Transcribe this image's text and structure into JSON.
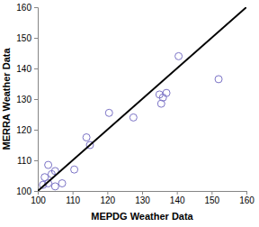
{
  "chart_data": {
    "type": "scatter",
    "x_label": "MEPDG Weather Data",
    "y_label": "MERRA Weather Data",
    "xlim": [
      100,
      160
    ],
    "ylim": [
      100,
      160
    ],
    "xticks": [
      100,
      110,
      120,
      130,
      140,
      150,
      160
    ],
    "yticks": [
      100,
      110,
      120,
      130,
      140,
      150,
      160
    ],
    "grid": false,
    "series": [
      {
        "type": "scatter",
        "marker": "circle",
        "color": "#7b73c6",
        "x": [
          101.5,
          102,
          103,
          103,
          104,
          105,
          105,
          107,
          110.5,
          114,
          115,
          120.5,
          127.5,
          135,
          135.5,
          136,
          137,
          140.5,
          152
        ],
        "values": [
          102,
          104.5,
          102.5,
          108.5,
          105.5,
          106.5,
          101.5,
          102.5,
          107,
          117.5,
          115,
          125.5,
          124,
          131.5,
          128.5,
          130.5,
          132,
          144,
          136.5
        ]
      },
      {
        "type": "line",
        "line_style": "solid",
        "color": "#000000",
        "x": [
          100,
          160
        ],
        "values": [
          100,
          160
        ]
      }
    ]
  }
}
